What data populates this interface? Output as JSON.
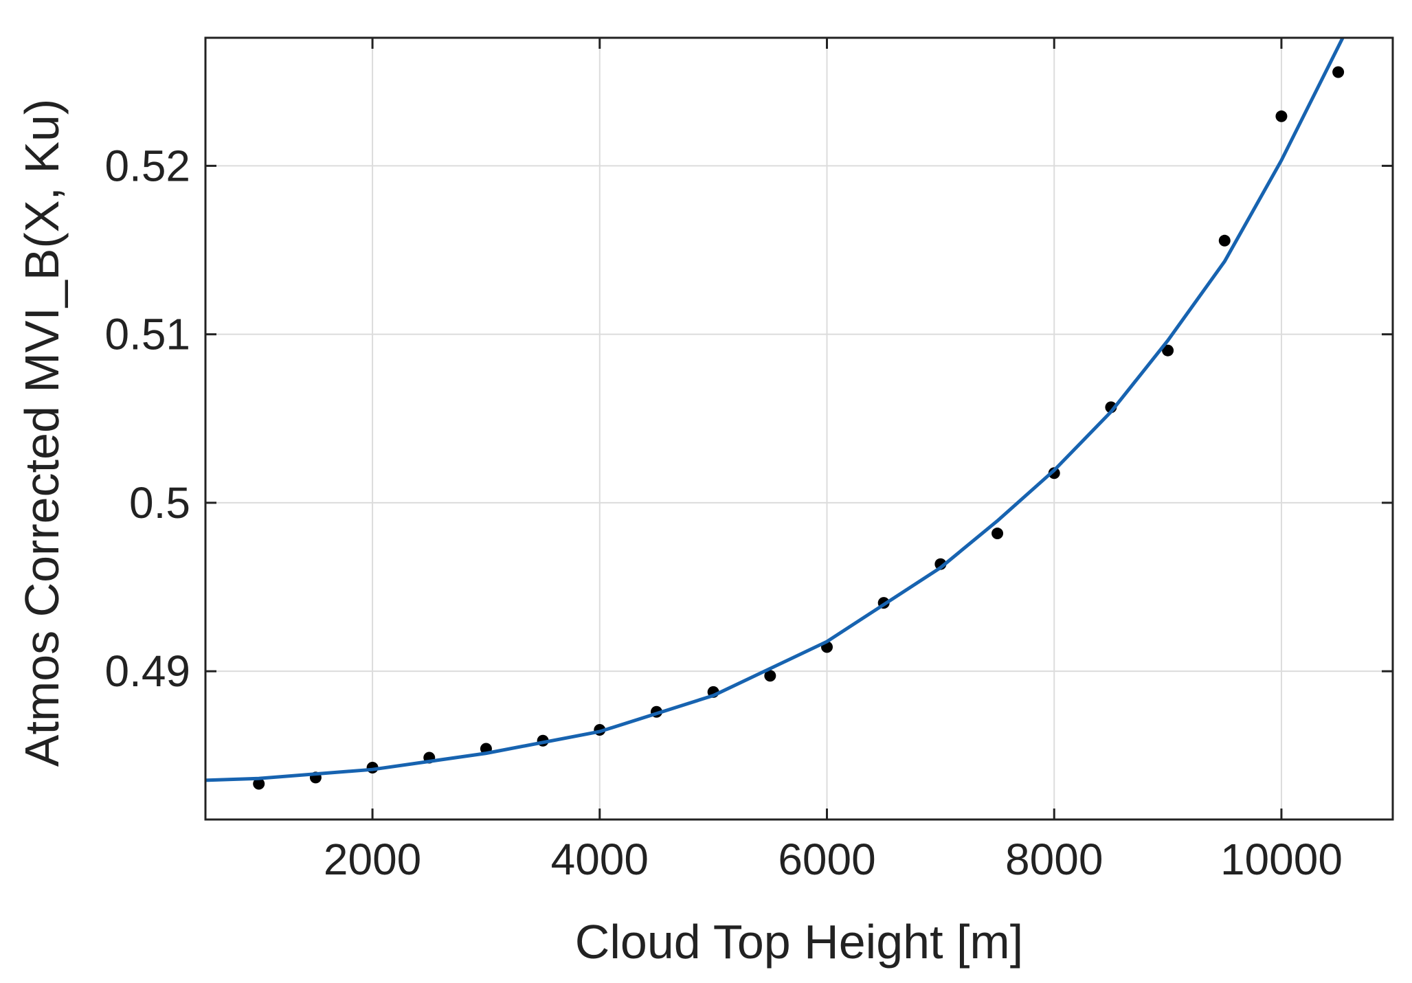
{
  "chart_data": {
    "type": "scatter",
    "xlabel": "Cloud Top Height [m]",
    "ylabel": "Atmos Corrected MVI_B(X, Ku)",
    "xlim": [
      530,
      10980
    ],
    "ylim": [
      0.4812,
      0.5276
    ],
    "xticks": [
      2000,
      4000,
      6000,
      8000,
      10000
    ],
    "yticks": [
      0.49,
      0.5,
      0.51,
      0.52
    ],
    "grid": true,
    "series": [
      {
        "mode": "markers",
        "color": "#000000",
        "x": [
          1000,
          1500,
          2000,
          2500,
          3000,
          3500,
          4000,
          4500,
          5000,
          5500,
          6000,
          6500,
          7000,
          7500,
          8000,
          8500,
          9000,
          9500,
          10000,
          10500
        ],
        "values": [
          0.48332,
          0.48369,
          0.48428,
          0.48487,
          0.4854,
          0.48588,
          0.48652,
          0.48759,
          0.48877,
          0.48973,
          0.49144,
          0.49406,
          0.49636,
          0.49818,
          0.50176,
          0.50567,
          0.50904,
          0.51556,
          0.52294,
          0.52556
        ]
      },
      {
        "mode": "line",
        "color": "#1763b0",
        "x": [
          530,
          1000,
          2000,
          3000,
          4000,
          5000,
          6000,
          7000,
          7500,
          8000,
          8500,
          9000,
          9500,
          10000,
          10540
        ],
        "values": [
          0.48353,
          0.48364,
          0.48417,
          0.48513,
          0.48642,
          0.48856,
          0.49176,
          0.49615,
          0.49893,
          0.50193,
          0.5054,
          0.50963,
          0.51433,
          0.52032,
          0.5276
        ]
      }
    ]
  }
}
